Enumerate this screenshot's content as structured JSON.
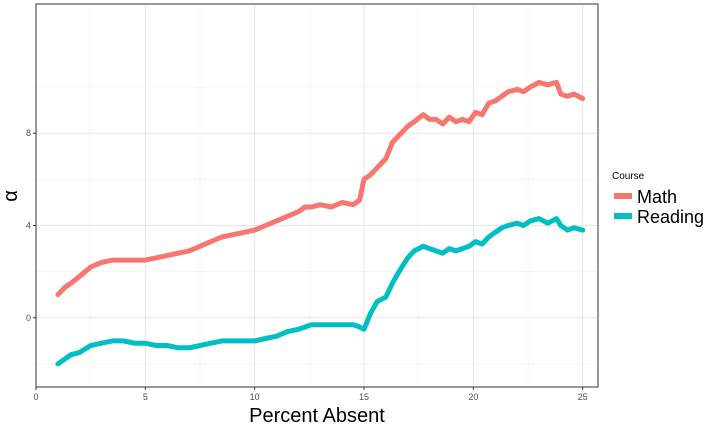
{
  "chart_data": {
    "type": "line",
    "xlabel": "Percent Absent",
    "ylabel": "α",
    "xlim": [
      0.0,
      25.7
    ],
    "ylim": [
      -3.0,
      13.6
    ],
    "xticks": [
      0,
      5,
      10,
      15,
      20,
      25
    ],
    "yticks": [
      0,
      4,
      8
    ],
    "xtick_labels": [
      "0",
      "5",
      "10",
      "15",
      "20",
      "25"
    ],
    "ytick_labels": [
      "0",
      "4",
      "8"
    ],
    "grid": true,
    "legend": {
      "title": "Course",
      "placement": "right"
    },
    "series": [
      {
        "name": "Math",
        "color": "#F8766D",
        "x": [
          1.0,
          1.3,
          1.6,
          2.0,
          2.5,
          3.0,
          3.5,
          4.0,
          4.5,
          5.0,
          5.5,
          6.0,
          6.5,
          7.0,
          7.5,
          8.0,
          8.5,
          9.0,
          9.5,
          10.0,
          10.5,
          11.0,
          11.5,
          12.0,
          12.3,
          12.6,
          13.0,
          13.5,
          14.0,
          14.5,
          14.8,
          15.0,
          15.3,
          15.6,
          16.0,
          16.3,
          16.6,
          17.0,
          17.3,
          17.7,
          18.0,
          18.3,
          18.6,
          18.9,
          19.2,
          19.5,
          19.8,
          20.1,
          20.4,
          20.7,
          21.0,
          21.3,
          21.6,
          22.0,
          22.3,
          22.6,
          23.0,
          23.4,
          23.8,
          24.0,
          24.3,
          24.6,
          25.0
        ],
        "y": [
          1.0,
          1.3,
          1.5,
          1.8,
          2.2,
          2.4,
          2.5,
          2.5,
          2.5,
          2.5,
          2.6,
          2.7,
          2.8,
          2.9,
          3.1,
          3.3,
          3.5,
          3.6,
          3.7,
          3.8,
          4.0,
          4.2,
          4.4,
          4.6,
          4.8,
          4.8,
          4.9,
          4.8,
          5.0,
          4.9,
          5.1,
          6.0,
          6.2,
          6.5,
          6.9,
          7.6,
          7.9,
          8.3,
          8.5,
          8.8,
          8.6,
          8.6,
          8.4,
          8.7,
          8.5,
          8.6,
          8.5,
          8.9,
          8.8,
          9.3,
          9.4,
          9.6,
          9.8,
          9.9,
          9.8,
          10.0,
          10.2,
          10.1,
          10.2,
          9.7,
          9.6,
          9.7,
          9.5
        ]
      },
      {
        "name": "Reading",
        "color": "#00BFC4",
        "x": [
          1.0,
          1.3,
          1.6,
          2.0,
          2.5,
          3.0,
          3.5,
          4.0,
          4.5,
          5.0,
          5.5,
          6.0,
          6.5,
          7.0,
          7.5,
          8.0,
          8.5,
          9.0,
          9.5,
          10.0,
          10.5,
          11.0,
          11.5,
          12.0,
          12.3,
          12.6,
          13.0,
          13.5,
          14.0,
          14.5,
          14.8,
          15.0,
          15.3,
          15.6,
          16.0,
          16.3,
          16.6,
          17.0,
          17.3,
          17.7,
          18.0,
          18.3,
          18.6,
          18.9,
          19.2,
          19.5,
          19.8,
          20.1,
          20.4,
          20.7,
          21.0,
          21.3,
          21.6,
          22.0,
          22.3,
          22.6,
          23.0,
          23.4,
          23.8,
          24.0,
          24.3,
          24.6,
          25.0
        ],
        "y": [
          -2.0,
          -1.8,
          -1.6,
          -1.5,
          -1.2,
          -1.1,
          -1.0,
          -1.0,
          -1.1,
          -1.1,
          -1.2,
          -1.2,
          -1.3,
          -1.3,
          -1.2,
          -1.1,
          -1.0,
          -1.0,
          -1.0,
          -1.0,
          -0.9,
          -0.8,
          -0.6,
          -0.5,
          -0.4,
          -0.3,
          -0.3,
          -0.3,
          -0.3,
          -0.3,
          -0.4,
          -0.5,
          0.2,
          0.7,
          0.9,
          1.5,
          2.0,
          2.6,
          2.9,
          3.1,
          3.0,
          2.9,
          2.8,
          3.0,
          2.9,
          3.0,
          3.1,
          3.3,
          3.2,
          3.5,
          3.7,
          3.9,
          4.0,
          4.1,
          4.0,
          4.2,
          4.3,
          4.1,
          4.3,
          4.0,
          3.8,
          3.9,
          3.8
        ]
      }
    ]
  }
}
